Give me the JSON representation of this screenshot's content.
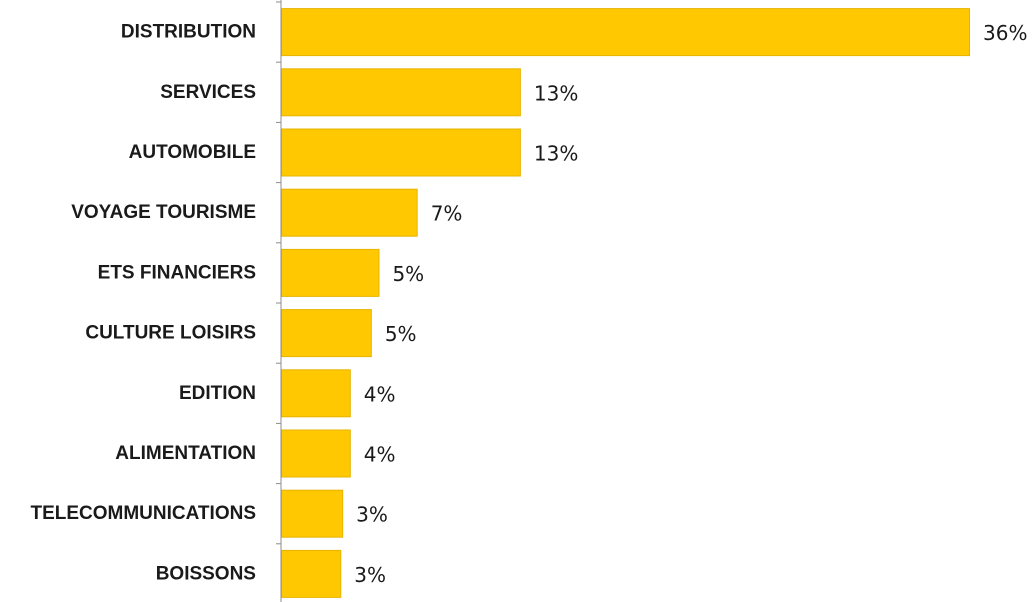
{
  "chart_data": {
    "type": "bar",
    "orientation": "horizontal",
    "categories": [
      "DISTRIBUTION",
      "SERVICES",
      "AUTOMOBILE",
      "VOYAGE TOURISME",
      "ETS FINANCIERS",
      "CULTURE LOISIRS",
      "EDITION",
      "ALIMENTATION",
      "TELECOMMUNICATIONS",
      "BOISSONS"
    ],
    "values": [
      36,
      12.5,
      12.5,
      7.1,
      5.1,
      4.7,
      3.6,
      3.6,
      3.2,
      3.1
    ],
    "data_labels": [
      "36%",
      "13%",
      "13%",
      "7%",
      "5%",
      "5%",
      "4%",
      "4%",
      "3%",
      "3%"
    ],
    "xlim": [
      0,
      36
    ],
    "grid": false,
    "legend": "none",
    "bar_color": "#FFC800",
    "bar_edge_color": "#E6B400",
    "axis_color": "#8c8c8c"
  }
}
